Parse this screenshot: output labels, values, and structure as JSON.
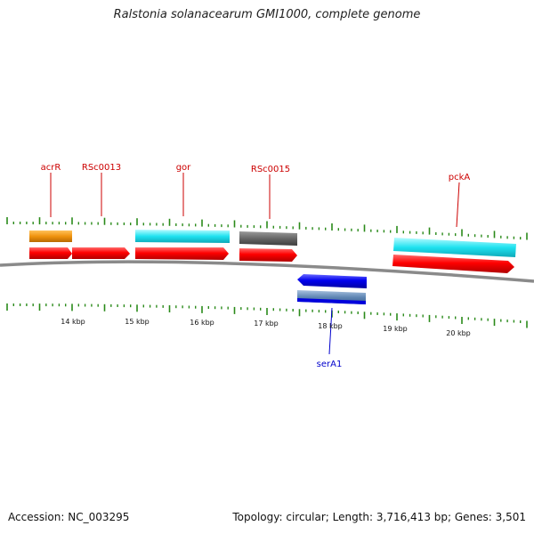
{
  "title": "Ralstonia solanacearum GMI1000, complete genome",
  "footer": {
    "accession": "Accession: NC_003295",
    "summary": "Topology: circular; Length: 3,716,413 bp; Genes: 3,501"
  },
  "colors": {
    "cds_forward": "#ff0000",
    "cds_reverse": "#0000ff",
    "cyan_feature": "#22e0ee",
    "orange_feature": "#f0930e",
    "gray_feature": "#666666",
    "tick": "#2a8a1a",
    "backbone": "#888888",
    "label_forward": "#cc0000",
    "label_reverse": "#0000cc"
  },
  "axis_labels": [
    {
      "text": "14 kbp"
    },
    {
      "text": "15 kbp"
    },
    {
      "text": "16 kbp"
    },
    {
      "text": "17 kbp"
    },
    {
      "text": "18 kbp"
    },
    {
      "text": "19 kbp"
    },
    {
      "text": "20 kbp"
    }
  ],
  "gene_labels": [
    {
      "text": "acrR"
    },
    {
      "text": "RSc0013"
    },
    {
      "text": "gor"
    },
    {
      "text": "RSc0015"
    },
    {
      "text": "pckA"
    },
    {
      "text": "serA1"
    }
  ]
}
